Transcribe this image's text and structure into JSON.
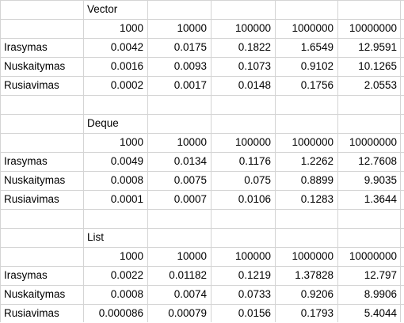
{
  "sections": [
    {
      "title": "Vector",
      "sizes": [
        "1000",
        "10000",
        "100000",
        "1000000",
        "10000000"
      ],
      "rows": [
        {
          "label": "Irasymas",
          "values": [
            "0.0042",
            "0.0175",
            "0.1822",
            "1.6549",
            "12.9591"
          ]
        },
        {
          "label": "Nuskaitymas",
          "values": [
            "0.0016",
            "0.0093",
            "0.1073",
            "0.9102",
            "10.1265"
          ]
        },
        {
          "label": "Rusiavimas",
          "values": [
            "0.0002",
            "0.0017",
            "0.0148",
            "0.1756",
            "2.0553"
          ]
        }
      ]
    },
    {
      "title": "Deque",
      "sizes": [
        "1000",
        "10000",
        "100000",
        "1000000",
        "10000000"
      ],
      "rows": [
        {
          "label": "Irasymas",
          "values": [
            "0.0049",
            "0.0134",
            "0.1176",
            "1.2262",
            "12.7608"
          ]
        },
        {
          "label": "Nuskaitymas",
          "values": [
            "0.0008",
            "0.0075",
            "0.075",
            "0.8899",
            "9.9035"
          ]
        },
        {
          "label": "Rusiavimas",
          "values": [
            "0.0001",
            "0.0007",
            "0.0106",
            "0.1283",
            "1.3644"
          ]
        }
      ]
    },
    {
      "title": "List",
      "sizes": [
        "1000",
        "10000",
        "100000",
        "1000000",
        "10000000"
      ],
      "rows": [
        {
          "label": "Irasymas",
          "values": [
            "0.0022",
            "0.01182",
            "0.1219",
            "1.37828",
            "12.797"
          ]
        },
        {
          "label": "Nuskaitymas",
          "values": [
            "0.0008",
            "0.0074",
            "0.0733",
            "0.9206",
            "8.9906"
          ]
        },
        {
          "label": "Rusiavimas",
          "values": [
            "0.000086",
            "0.00079",
            "0.0156",
            "0.1793",
            "5.4044"
          ]
        }
      ]
    }
  ]
}
